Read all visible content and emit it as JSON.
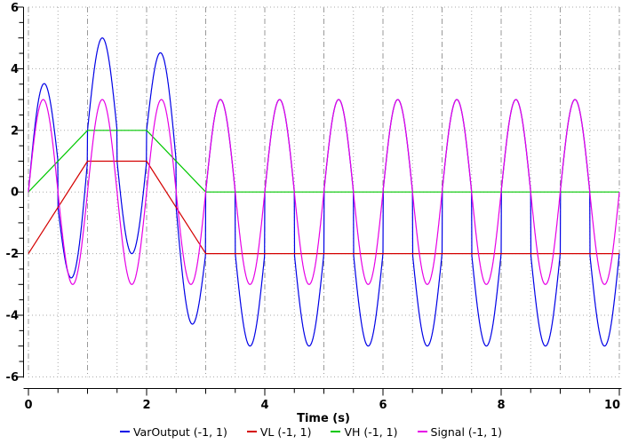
{
  "chart_data": {
    "type": "line",
    "title": "",
    "xlabel": "Time (s)",
    "ylabel": "",
    "xlim": [
      0,
      10
    ],
    "ylim": [
      -6,
      6
    ],
    "x_label_values": [
      0,
      2,
      4,
      6,
      8,
      10
    ],
    "x_tick_labels": [
      "0",
      "2",
      "4",
      "6",
      "8",
      "10"
    ],
    "y_label_values": [
      6,
      4,
      2,
      0,
      -2,
      -4,
      -6
    ],
    "y_tick_labels": [
      "6",
      "4",
      "2",
      "0",
      "-2",
      "-4",
      "-6"
    ],
    "x_minor_tick_step": 0.5,
    "y_minor_tick_step": 0.5,
    "grid": {
      "vertical_major_every": 1,
      "vertical_minor_every": 0.5,
      "horizontal_every": 2,
      "major_color": "#999999",
      "minor_color": "#aaaaaa"
    },
    "legend_position": "bottom-center",
    "series": [
      {
        "key": "VarOutput",
        "name": "VarOutput (-1, 1)",
        "color": "#0000e6",
        "kind": "conditional_offset_sine",
        "amplitude": 3,
        "frequency_hz": 1,
        "offset_when_positive_ref": "VH",
        "offset_when_negative_ref": "VL",
        "peaks_observed": [
          [
            0.25,
            3.5
          ],
          [
            1.25,
            5.0
          ],
          [
            2.25,
            4.5
          ],
          [
            3.25,
            3.0
          ]
        ],
        "troughs_observed": [
          [
            0.75,
            -2.75
          ],
          [
            1.75,
            -2.0
          ],
          [
            2.75,
            -4.25
          ],
          [
            3.75,
            -5.0
          ]
        ]
      },
      {
        "key": "VL",
        "name": "VL (-1, 1)",
        "color": "#d40000",
        "kind": "piecewise_linear",
        "points": [
          [
            0,
            -2
          ],
          [
            1,
            1
          ],
          [
            2,
            1
          ],
          [
            3,
            -2
          ],
          [
            10,
            -2
          ]
        ]
      },
      {
        "key": "VH",
        "name": "VH (-1, 1)",
        "color": "#00c800",
        "kind": "piecewise_linear",
        "points": [
          [
            0,
            0
          ],
          [
            1,
            2
          ],
          [
            2,
            2
          ],
          [
            3,
            0
          ],
          [
            10,
            0
          ]
        ]
      },
      {
        "key": "Signal",
        "name": "Signal (-1, 1)",
        "color": "#e600e6",
        "kind": "sine",
        "amplitude": 3,
        "frequency_hz": 1
      }
    ]
  }
}
